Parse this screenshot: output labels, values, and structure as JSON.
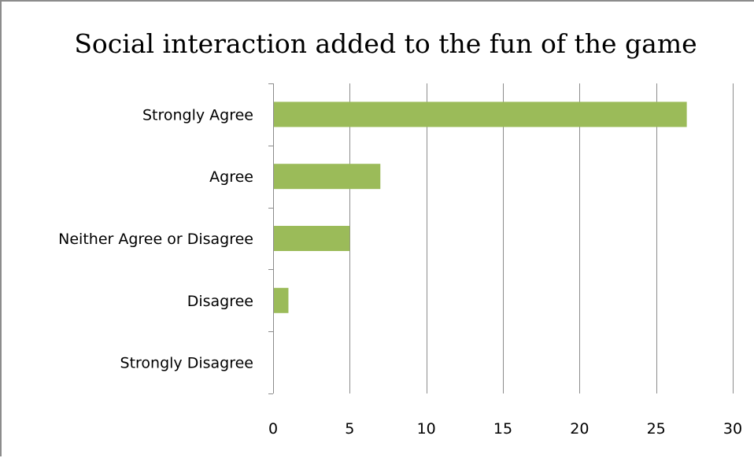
{
  "chart_data": {
    "type": "bar",
    "orientation": "horizontal",
    "title": "Social interaction added to the fun of the game",
    "xlabel": "",
    "ylabel": "",
    "categories": [
      "Strongly Agree",
      "Agree",
      "Neither Agree or Disagree",
      "Disagree",
      "Strongly Disagree"
    ],
    "values": [
      27,
      7,
      5,
      1,
      0
    ],
    "xlim": [
      0,
      30
    ],
    "xticks": [
      0,
      5,
      10,
      15,
      20,
      25,
      30
    ],
    "grid": true,
    "legend": "none",
    "bar_color": "#9BBB59",
    "grid_color": "#8c8c8c"
  }
}
